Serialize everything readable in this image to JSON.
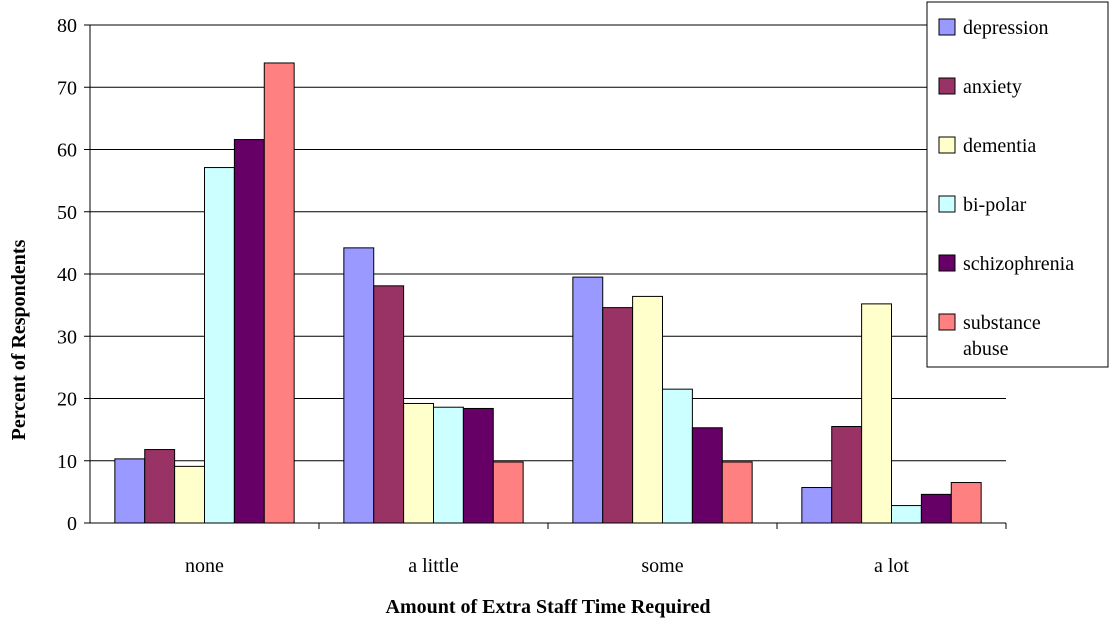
{
  "chart_data": {
    "type": "bar",
    "title": "",
    "xlabel": "Amount of Extra Staff Time Required",
    "ylabel": "Percent of Respondents",
    "ylim": [
      0,
      80
    ],
    "yticks": [
      0,
      10,
      20,
      30,
      40,
      50,
      60,
      70,
      80
    ],
    "grid": true,
    "legend_position": "top-right",
    "categories": [
      "none",
      "a little",
      "some",
      "a lot"
    ],
    "series": [
      {
        "name": "depression",
        "color": "#9999FF",
        "values": [
          10.3,
          44.2,
          39.5,
          5.7
        ]
      },
      {
        "name": "anxiety",
        "color": "#993366",
        "values": [
          11.8,
          38.1,
          34.6,
          15.5
        ]
      },
      {
        "name": "dementia",
        "color": "#FFFFCC",
        "values": [
          9.1,
          19.2,
          36.4,
          35.2
        ]
      },
      {
        "name": "bi-polar",
        "color": "#CCFFFF",
        "values": [
          57.1,
          18.6,
          21.5,
          2.8
        ]
      },
      {
        "name": "schizophrenia",
        "color": "#660066",
        "values": [
          61.6,
          18.4,
          15.3,
          4.6
        ]
      },
      {
        "name": "substance abuse",
        "legend_lines": [
          "substance",
          "abuse"
        ],
        "color": "#FF8080",
        "values": [
          73.9,
          9.8,
          9.8,
          6.5
        ]
      }
    ]
  }
}
